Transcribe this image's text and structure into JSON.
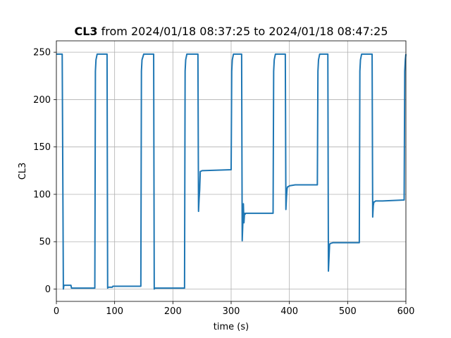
{
  "chart_data": {
    "type": "line",
    "title_bold": "CL3",
    "title_rest": " from 2024/01/18 08:37:25 to 2024/01/18 08:47:25",
    "xlabel": "time (s)",
    "ylabel": "CL3",
    "xlim": [
      0,
      600
    ],
    "ylim": [
      -13,
      262
    ],
    "xticks": [
      0,
      100,
      200,
      300,
      400,
      500,
      600
    ],
    "yticks": [
      0,
      50,
      100,
      150,
      200,
      250
    ],
    "grid": true,
    "series_color": "#1f77b4",
    "series": [
      {
        "x": [
          0,
          10,
          12,
          13,
          14,
          15,
          25,
          26,
          66,
          67,
          68,
          70,
          75,
          87,
          88,
          89,
          90,
          96,
          97,
          145,
          146,
          147,
          150,
          155,
          167,
          168,
          169,
          170,
          180,
          200,
          220,
          221,
          222,
          224,
          230,
          243,
          244,
          245,
          246,
          247,
          250,
          300,
          301,
          302,
          304,
          310,
          318,
          319,
          320,
          321,
          322,
          323,
          324,
          325,
          326,
          330,
          372,
          373,
          374,
          376,
          380,
          393,
          394,
          395,
          396,
          397,
          398,
          400,
          410,
          448,
          449,
          450,
          452,
          455,
          466,
          467,
          468,
          469,
          470,
          475,
          520,
          521,
          522,
          524,
          530,
          542,
          543,
          544,
          545,
          546,
          548,
          560,
          597,
          598,
          599,
          600
        ],
        "y": [
          248,
          248,
          0,
          4,
          4,
          4,
          4,
          1,
          1,
          230,
          242,
          248,
          248,
          248,
          1,
          2,
          2,
          2,
          3,
          3,
          230,
          242,
          248,
          248,
          248,
          0,
          1,
          1,
          1,
          1,
          1,
          230,
          242,
          248,
          248,
          248,
          82,
          95,
          105,
          124,
          125,
          126,
          230,
          242,
          248,
          248,
          248,
          51,
          68,
          90,
          70,
          80,
          79,
          80,
          80,
          80,
          80,
          230,
          242,
          248,
          248,
          248,
          84,
          97,
          106,
          108,
          108,
          109,
          110,
          110,
          230,
          242,
          248,
          248,
          248,
          19,
          33,
          47,
          48,
          49,
          49,
          230,
          242,
          248,
          248,
          248,
          76,
          88,
          92,
          92,
          93,
          93,
          94,
          230,
          242,
          248
        ]
      }
    ]
  }
}
